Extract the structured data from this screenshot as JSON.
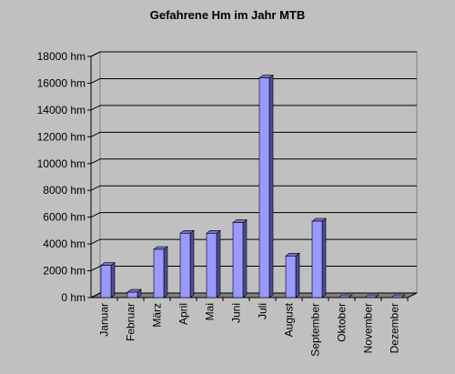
{
  "chart_data": {
    "type": "bar3d",
    "title": "Gefahrene Hm im Jahr MTB",
    "categories": [
      "Januar",
      "Februar",
      "März",
      "April",
      "Mai",
      "Juni",
      "Juli",
      "August",
      "September",
      "Oktober",
      "November",
      "Dezember"
    ],
    "values": [
      2400,
      400,
      3600,
      4800,
      4800,
      5600,
      16400,
      3100,
      5700,
      0,
      0,
      0
    ],
    "color": "#9999ff",
    "ylim": [
      0,
      18000
    ],
    "yticks": [
      {
        "value": 0,
        "label": "0 hm"
      },
      {
        "value": 2000,
        "label": "2000 hm"
      },
      {
        "value": 4000,
        "label": "4000 hm"
      },
      {
        "value": 6000,
        "label": "6000 hm"
      },
      {
        "value": 8000,
        "label": "8000 hm"
      },
      {
        "value": 10000,
        "label": "10000 hm"
      },
      {
        "value": 12000,
        "label": "12000 hm"
      },
      {
        "value": 14000,
        "label": "14000 hm"
      },
      {
        "value": 16000,
        "label": "16000 hm"
      },
      {
        "value": 18000,
        "label": "18000 hm"
      }
    ],
    "grid": true
  }
}
